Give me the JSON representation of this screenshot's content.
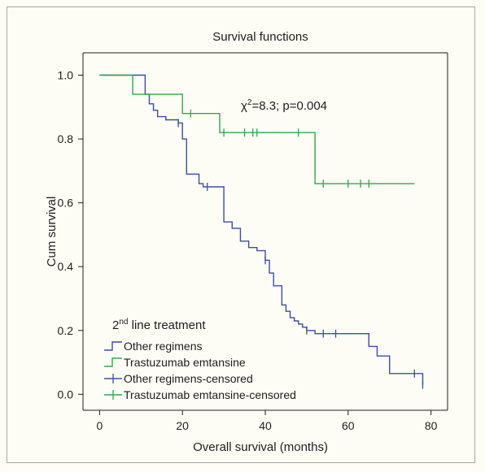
{
  "chart_data": {
    "type": "line",
    "title": "Survival functions",
    "xlabel": "Overall survival (months)",
    "ylabel": "Cum survival",
    "xlim": [
      -4,
      84
    ],
    "ylim": [
      -0.05,
      1.07
    ],
    "xticks": [
      0,
      20,
      40,
      60,
      80
    ],
    "yticks": [
      "0.0",
      "0.2",
      "0.4",
      "0.6",
      "0.8",
      "1.0"
    ],
    "grid": false,
    "legend_position": "bottom-left",
    "legend_title_base": "2",
    "legend_title_sup": "nd",
    "legend_title_rest": " line treatment",
    "annotation_base": "χ",
    "annotation_sup": "2",
    "annotation_rest": "=8.3; p=0.004",
    "series": [
      {
        "name": "Other regimens",
        "color": "#3b4fa3",
        "steps": [
          [
            0,
            1.0
          ],
          [
            11,
            0.94
          ],
          [
            12,
            0.91
          ],
          [
            13,
            0.89
          ],
          [
            14,
            0.87
          ],
          [
            16,
            0.86
          ],
          [
            19,
            0.85
          ],
          [
            20,
            0.8
          ],
          [
            21,
            0.69
          ],
          [
            24,
            0.66
          ],
          [
            25,
            0.65
          ],
          [
            28,
            0.65
          ],
          [
            30,
            0.54
          ],
          [
            32,
            0.52
          ],
          [
            34,
            0.48
          ],
          [
            36,
            0.46
          ],
          [
            38,
            0.45
          ],
          [
            40,
            0.42
          ],
          [
            41,
            0.38
          ],
          [
            42,
            0.34
          ],
          [
            44,
            0.28
          ],
          [
            45,
            0.26
          ],
          [
            46,
            0.24
          ],
          [
            47,
            0.23
          ],
          [
            48,
            0.22
          ],
          [
            49,
            0.21
          ],
          [
            50,
            0.2
          ],
          [
            52,
            0.19
          ],
          [
            65,
            0.15
          ],
          [
            67,
            0.12
          ],
          [
            70,
            0.065
          ],
          [
            78,
            0.03
          ]
        ],
        "x_end": 78
      },
      {
        "name": "Trastuzumab emtansine",
        "color": "#2eaa4a",
        "steps": [
          [
            0,
            1.0
          ],
          [
            8,
            0.94
          ],
          [
            20,
            0.88
          ],
          [
            29,
            0.82
          ],
          [
            52,
            0.66
          ]
        ],
        "x_end": 76
      },
      {
        "name": "Other regimens-censored",
        "color": "#3b4fa3",
        "censored": [
          [
            19,
            0.85
          ],
          [
            26,
            0.65
          ],
          [
            40,
            0.42
          ],
          [
            50,
            0.2
          ],
          [
            54,
            0.19
          ],
          [
            57,
            0.19
          ],
          [
            76,
            0.065
          ],
          [
            78,
            0.03
          ]
        ]
      },
      {
        "name": "Trastuzumab emtansine-censored",
        "color": "#2eaa4a",
        "censored": [
          [
            22,
            0.88
          ],
          [
            30,
            0.82
          ],
          [
            35,
            0.82
          ],
          [
            37,
            0.82
          ],
          [
            38,
            0.82
          ],
          [
            48,
            0.82
          ],
          [
            54,
            0.66
          ],
          [
            60,
            0.66
          ],
          [
            63,
            0.66
          ],
          [
            65,
            0.66
          ]
        ]
      }
    ]
  }
}
